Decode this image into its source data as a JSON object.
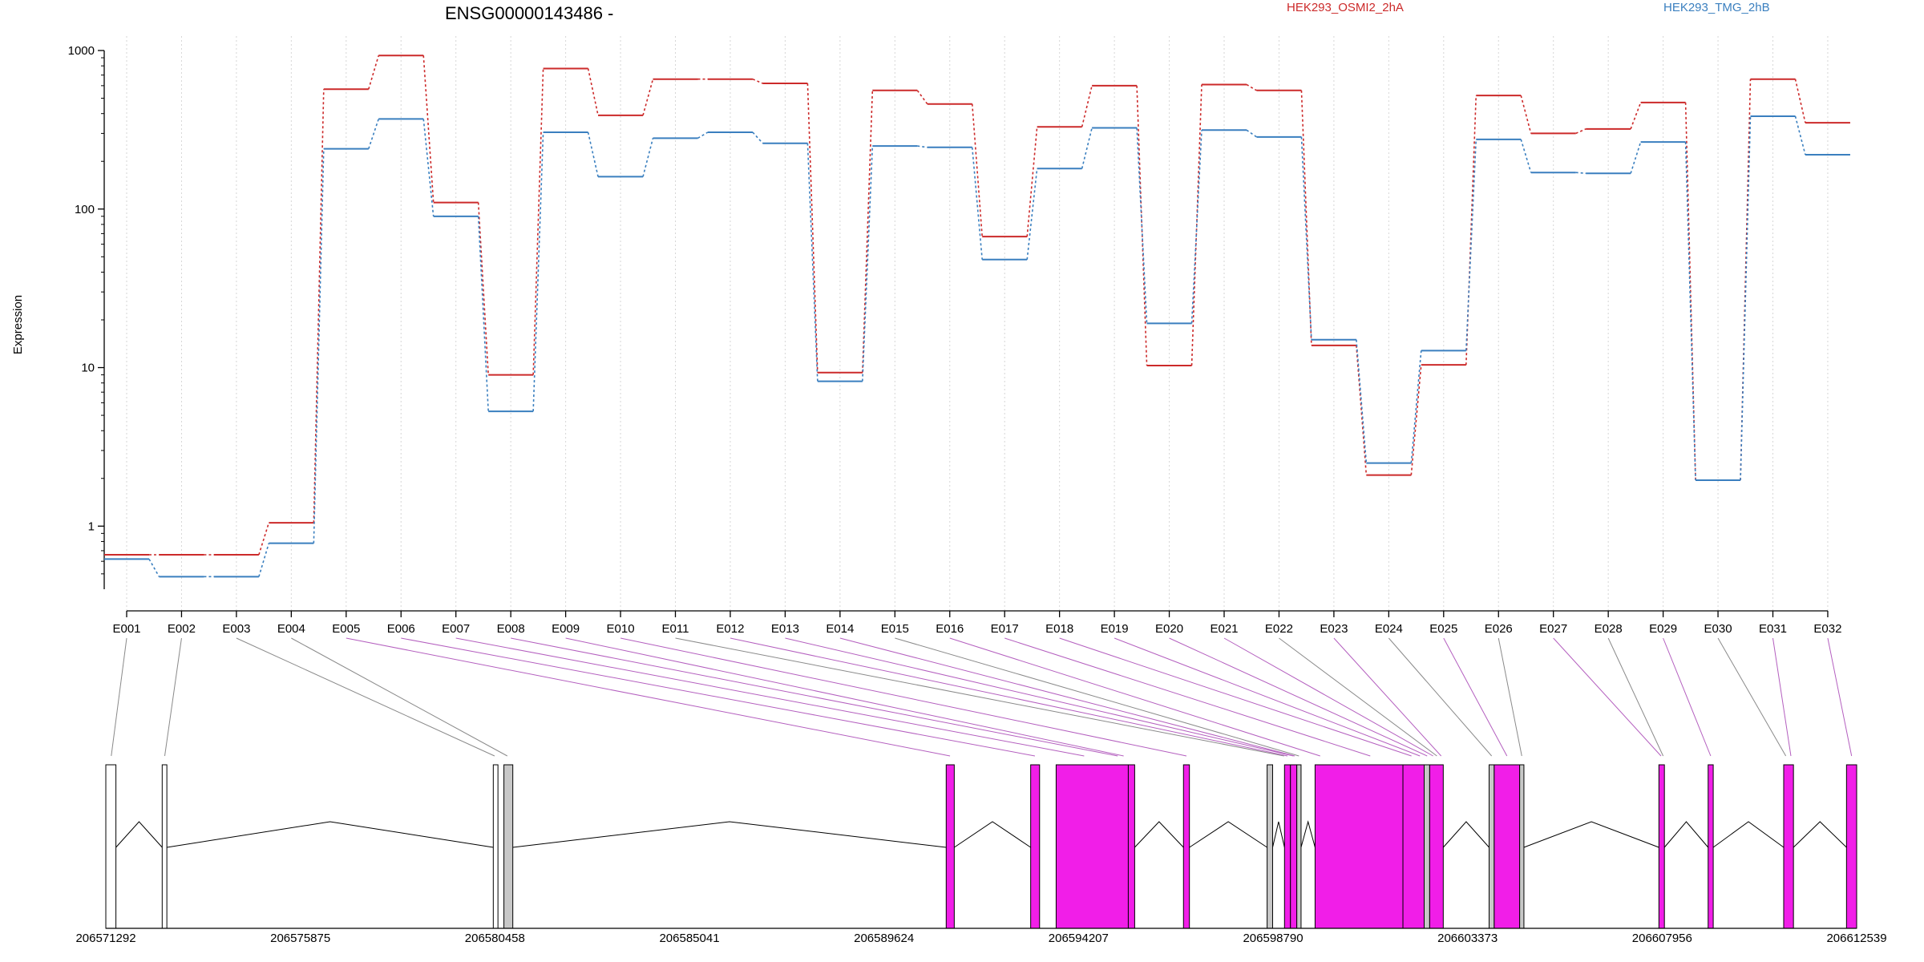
{
  "chart_data": {
    "type": "line",
    "title": "ENSG00000143486 -",
    "ylabel": "Expression",
    "xlabel": "",
    "y_scale": "log",
    "ylim": [
      0.4,
      1000
    ],
    "y_ticks": [
      1,
      10,
      100,
      1000
    ],
    "y_tick_labels": [
      "1",
      "10",
      "100",
      "1000"
    ],
    "grid": "vertical dotted lines at exon ticks",
    "legend_placement": "top-right",
    "categories": [
      "E001",
      "E002",
      "E003",
      "E004",
      "E005",
      "E006",
      "E007",
      "E008",
      "E009",
      "E010",
      "E011",
      "E012",
      "E013",
      "E014",
      "E015",
      "E016",
      "E017",
      "E018",
      "E019",
      "E020",
      "E021",
      "E022",
      "E023",
      "E024",
      "E025",
      "E026",
      "E027",
      "E028",
      "E029",
      "E030",
      "E031",
      "E032"
    ],
    "series": [
      {
        "name": "HEK293_OSMI2_2hA",
        "color": "#cc2a2a",
        "values": [
          0.66,
          0.66,
          0.66,
          1.05,
          570,
          930,
          110,
          9,
          770,
          390,
          660,
          660,
          620,
          9.3,
          560,
          460,
          67,
          330,
          600,
          10.3,
          610,
          560,
          13.8,
          2.1,
          10.4,
          520,
          300,
          320,
          470,
          1.95,
          660,
          350
        ]
      },
      {
        "name": "HEK293_TMG_2hB",
        "color": "#3a7fbf",
        "values": [
          0.62,
          0.48,
          0.48,
          0.78,
          240,
          370,
          90,
          5.3,
          305,
          160,
          280,
          305,
          260,
          8.2,
          250,
          245,
          48,
          180,
          325,
          19,
          315,
          285,
          15,
          2.5,
          12.8,
          275,
          170,
          168,
          265,
          1.95,
          385,
          220
        ]
      }
    ],
    "gene_model": {
      "fill_colors": {
        "expressed": "#f11ee8",
        "partial": "#c8c8c8",
        "unexpressed": "#ffffff"
      },
      "genomic_tick_labels": [
        "206571292",
        "206575875",
        "206580458",
        "206585041",
        "206589624",
        "206594207",
        "206598790",
        "206603373",
        "206607956",
        "206612539"
      ],
      "genomic_range": [
        206571292,
        206612539
      ],
      "exons": [
        {
          "start": 206571292,
          "end": 206571530,
          "type": "unexpressed"
        },
        {
          "start": 206572620,
          "end": 206572730,
          "type": "unexpressed"
        },
        {
          "start": 206580420,
          "end": 206580530,
          "type": "unexpressed"
        },
        {
          "start": 206580670,
          "end": 206580880,
          "type": "partial"
        },
        {
          "start": 206591090,
          "end": 206591280,
          "type": "expressed"
        },
        {
          "start": 206593080,
          "end": 206593290,
          "type": "expressed"
        },
        {
          "start": 206593680,
          "end": 206595380,
          "type": "expressed"
        },
        {
          "start": 206595380,
          "end": 206595530,
          "type": "expressed"
        },
        {
          "start": 206596680,
          "end": 206596820,
          "type": "expressed"
        },
        {
          "start": 206598650,
          "end": 206598780,
          "type": "partial"
        },
        {
          "start": 206599060,
          "end": 206599200,
          "type": "expressed"
        },
        {
          "start": 206599200,
          "end": 206599350,
          "type": "expressed"
        },
        {
          "start": 206599350,
          "end": 206599450,
          "type": "partial"
        },
        {
          "start": 206599780,
          "end": 206601850,
          "type": "expressed"
        },
        {
          "start": 206601850,
          "end": 206602350,
          "type": "expressed"
        },
        {
          "start": 206602350,
          "end": 206602480,
          "type": "partial"
        },
        {
          "start": 206602480,
          "end": 206602800,
          "type": "expressed"
        },
        {
          "start": 206603880,
          "end": 206604000,
          "type": "partial"
        },
        {
          "start": 206604000,
          "end": 206604600,
          "type": "expressed"
        },
        {
          "start": 206604600,
          "end": 206604700,
          "type": "partial"
        },
        {
          "start": 206607880,
          "end": 206608010,
          "type": "expressed"
        },
        {
          "start": 206609040,
          "end": 206609160,
          "type": "expressed"
        },
        {
          "start": 206610820,
          "end": 206611050,
          "type": "expressed"
        },
        {
          "start": 206612300,
          "end": 206612539,
          "type": "expressed"
        }
      ],
      "connectors": [
        {
          "exon": "E001",
          "pos": 206571420,
          "type": "unexpressed"
        },
        {
          "exon": "E002",
          "pos": 206572680,
          "type": "unexpressed"
        },
        {
          "exon": "E003",
          "pos": 206580450,
          "type": "unexpressed"
        },
        {
          "exon": "E004",
          "pos": 206580750,
          "type": "partial"
        },
        {
          "exon": "E005",
          "pos": 206591180,
          "type": "expressed"
        },
        {
          "exon": "E006",
          "pos": 206593180,
          "type": "expressed"
        },
        {
          "exon": "E007",
          "pos": 206594340,
          "type": "expressed"
        },
        {
          "exon": "E008",
          "pos": 206595130,
          "type": "expressed"
        },
        {
          "exon": "E009",
          "pos": 206595270,
          "type": "expressed"
        },
        {
          "exon": "E010",
          "pos": 206596750,
          "type": "expressed"
        },
        {
          "exon": "E011",
          "pos": 206599050,
          "type": "partial"
        },
        {
          "exon": "E012",
          "pos": 206599130,
          "type": "expressed"
        },
        {
          "exon": "E013",
          "pos": 206599270,
          "type": "expressed"
        },
        {
          "exon": "E014",
          "pos": 206599300,
          "type": "expressed"
        },
        {
          "exon": "E015",
          "pos": 206599400,
          "type": "partial"
        },
        {
          "exon": "E016",
          "pos": 206599900,
          "type": "expressed"
        },
        {
          "exon": "E017",
          "pos": 206601080,
          "type": "expressed"
        },
        {
          "exon": "E018",
          "pos": 206602050,
          "type": "expressed"
        },
        {
          "exon": "E019",
          "pos": 206602250,
          "type": "expressed"
        },
        {
          "exon": "E020",
          "pos": 206602420,
          "type": "expressed"
        },
        {
          "exon": "E021",
          "pos": 206602560,
          "type": "expressed"
        },
        {
          "exon": "E022",
          "pos": 206602650,
          "type": "partial"
        },
        {
          "exon": "E023",
          "pos": 206602750,
          "type": "expressed"
        },
        {
          "exon": "E024",
          "pos": 206603940,
          "type": "partial"
        },
        {
          "exon": "E025",
          "pos": 206604300,
          "type": "expressed"
        },
        {
          "exon": "E026",
          "pos": 206604650,
          "type": "partial"
        },
        {
          "exon": "E027",
          "pos": 206607930,
          "type": "expressed"
        },
        {
          "exon": "E028",
          "pos": 206607980,
          "type": "partial"
        },
        {
          "exon": "E029",
          "pos": 206609100,
          "type": "expressed"
        },
        {
          "exon": "E030",
          "pos": 206610870,
          "type": "partial"
        },
        {
          "exon": "E031",
          "pos": 206610990,
          "type": "expressed"
        },
        {
          "exon": "E032",
          "pos": 206612420,
          "type": "expressed"
        }
      ],
      "introns": [
        [
          206571530,
          206572620
        ],
        [
          206572730,
          206580420
        ],
        [
          206580880,
          206591090
        ],
        [
          206591280,
          206593080
        ],
        [
          206595530,
          206596680
        ],
        [
          206596820,
          206598650
        ],
        [
          206598780,
          206599060
        ],
        [
          206599450,
          206599780
        ],
        [
          206602800,
          206603880
        ],
        [
          206604700,
          206607880
        ],
        [
          206608010,
          206609040
        ],
        [
          206609160,
          206610820
        ],
        [
          206611050,
          206612300
        ]
      ]
    }
  }
}
